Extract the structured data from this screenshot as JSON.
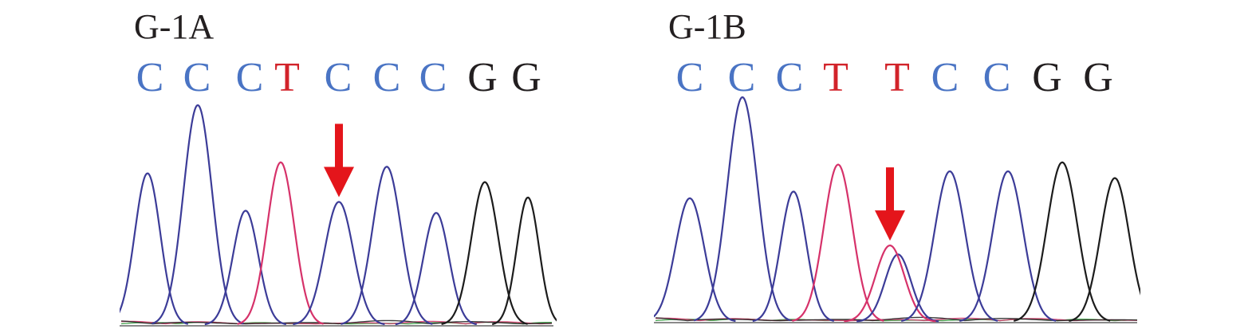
{
  "colors": {
    "C": "#4a74c4",
    "T": "#d2232a",
    "G": "#231f20",
    "trace_C": "#3c3c98",
    "trace_T": "#d6326a",
    "trace_G": "#1c1c1c",
    "trace_A": "#2e9a3a",
    "baseline": "#8a8a8a",
    "arrow": "#e4151b"
  },
  "panels": [
    {
      "id": "panel-a",
      "title": "G-1A",
      "bases": [
        "C",
        "C",
        "C",
        "T",
        "C",
        "C",
        "C",
        "G",
        "G"
      ],
      "peaks": [
        {
          "base": "C",
          "height": 0.69
        },
        {
          "base": "C",
          "height": 1.0
        },
        {
          "base": "C",
          "height": 0.52
        },
        {
          "base": "T",
          "height": 0.74
        },
        {
          "base": "C",
          "height": 0.56
        },
        {
          "base": "C",
          "height": 0.72
        },
        {
          "base": "C",
          "height": 0.51
        },
        {
          "base": "G",
          "height": 0.65
        },
        {
          "base": "G",
          "height": 0.58
        }
      ],
      "arrow_peak_index": 4
    },
    {
      "id": "panel-b",
      "title": "G-1B",
      "bases": [
        "C",
        "C",
        "C",
        "T",
        "T",
        "C",
        "C",
        "G",
        "G"
      ],
      "peaks": [
        {
          "base": "C",
          "height": 0.55
        },
        {
          "base": "C",
          "height": 1.0
        },
        {
          "base": "C",
          "height": 0.58
        },
        {
          "base": "T",
          "height": 0.7
        },
        {
          "base": "T/C",
          "height": 0.34,
          "secondary_base": "C",
          "secondary_height": 0.3
        },
        {
          "base": "C",
          "height": 0.67
        },
        {
          "base": "C",
          "height": 0.67
        },
        {
          "base": "G",
          "height": 0.71
        },
        {
          "base": "G",
          "height": 0.64
        }
      ],
      "arrow_peak_index": 4
    }
  ]
}
